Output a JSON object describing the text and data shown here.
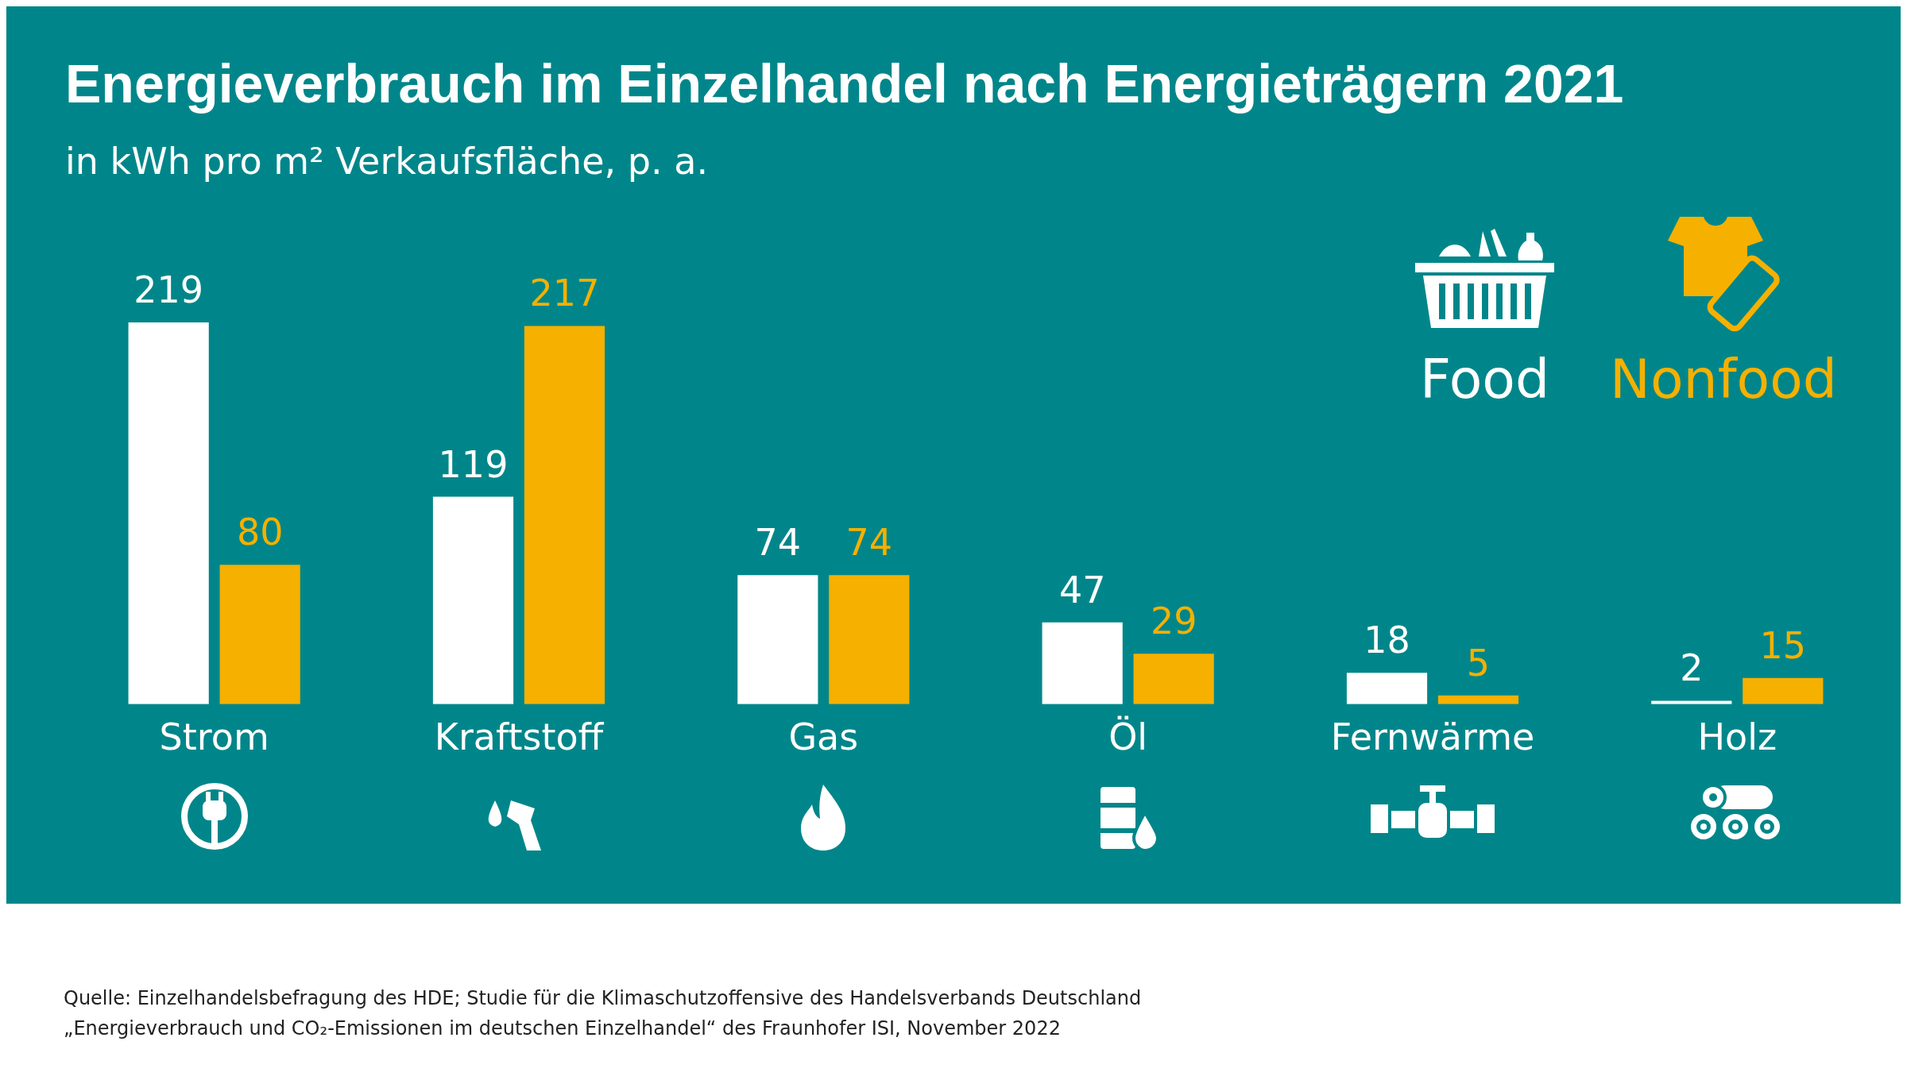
{
  "chart_data": {
    "type": "bar",
    "title": "Energieverbrauch im Einzelhandel nach Energieträgern 2021",
    "subtitle": "in kWh pro m² Verkaufsfläche, p. a.",
    "categories": [
      "Strom",
      "Kraftstoff",
      "Gas",
      "Öl",
      "Fernwärme",
      "Holz"
    ],
    "series": [
      {
        "name": "Food",
        "color": "#ffffff",
        "values": [
          219,
          119,
          74,
          47,
          18,
          2
        ]
      },
      {
        "name": "Nonfood",
        "color": "#f5b000",
        "values": [
          80,
          217,
          74,
          29,
          5,
          15
        ]
      }
    ],
    "data_labels": true,
    "grid": false,
    "legend": "top right",
    "annotations": [
      "Quelle: Einzelhandelsbefragung des HDE; Studie für die Klimaschutzoffensive des Handelsverbands Deutschland",
      "„Energieverbrauch und CO₂-Emissionen im deutschen Einzelhandel“ des Fraunhofer ISI, November 2022"
    ]
  }
}
